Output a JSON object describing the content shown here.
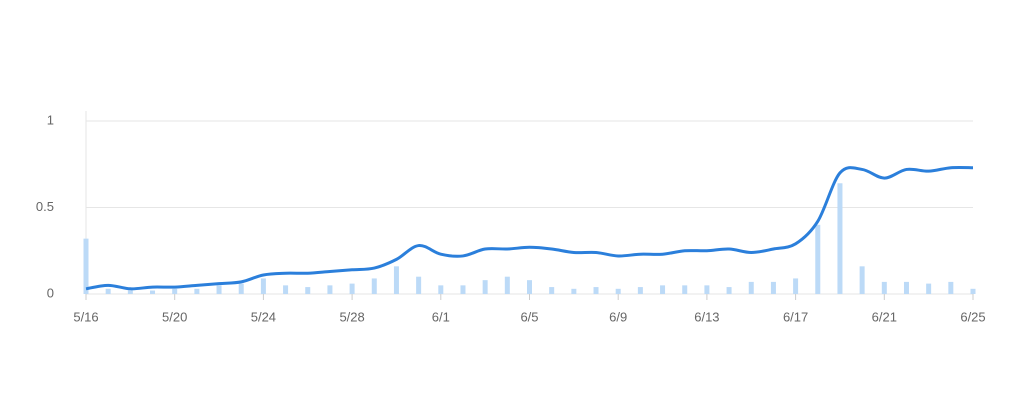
{
  "chart_data": {
    "type": "bar-line",
    "categories": [
      "5/16",
      null,
      null,
      null,
      "5/20",
      null,
      null,
      null,
      "5/24",
      null,
      null,
      null,
      "5/28",
      null,
      null,
      null,
      "6/1",
      null,
      null,
      null,
      "6/5",
      null,
      null,
      null,
      "6/9",
      null,
      null,
      null,
      "6/13",
      null,
      null,
      null,
      "6/17",
      null,
      null,
      null,
      "6/21",
      null,
      null,
      null,
      "6/25"
    ],
    "series": [
      {
        "type": "bar",
        "color": "#bcdaf7",
        "values": [
          0.32,
          0.03,
          0.02,
          0.02,
          0.03,
          0.03,
          0.05,
          0.06,
          0.09,
          0.05,
          0.04,
          0.05,
          0.06,
          0.09,
          0.16,
          0.1,
          0.05,
          0.05,
          0.08,
          0.1,
          0.08,
          0.04,
          0.03,
          0.04,
          0.03,
          0.04,
          0.05,
          0.05,
          0.05,
          0.04,
          0.07,
          0.07,
          0.09,
          0.4,
          0.64,
          0.16,
          0.07,
          0.07,
          0.06,
          0.07,
          0.03
        ]
      },
      {
        "type": "line",
        "color": "#2b7fdb",
        "values": [
          0.03,
          0.05,
          0.03,
          0.04,
          0.04,
          0.05,
          0.06,
          0.07,
          0.11,
          0.12,
          0.12,
          0.13,
          0.14,
          0.15,
          0.2,
          0.28,
          0.23,
          0.22,
          0.26,
          0.26,
          0.27,
          0.26,
          0.24,
          0.24,
          0.22,
          0.23,
          0.23,
          0.25,
          0.25,
          0.26,
          0.24,
          0.26,
          0.29,
          0.42,
          0.7,
          0.72,
          0.67,
          0.72,
          0.71,
          0.73,
          0.73
        ]
      }
    ],
    "ylim": [
      0,
      1
    ],
    "yticks": [
      0,
      0.5,
      1
    ],
    "grid": true
  }
}
